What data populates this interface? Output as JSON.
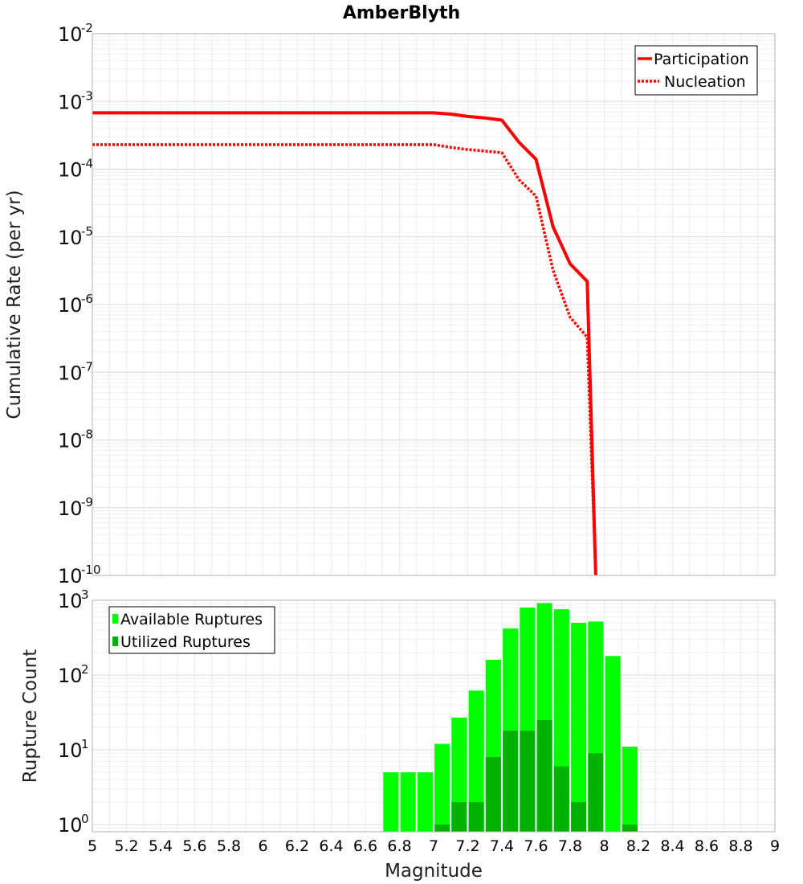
{
  "chart_data": [
    {
      "type": "line",
      "title": "AmberBlyth",
      "xlabel": "Magnitude",
      "ylabel": "Cumulative Rate (per yr)",
      "yscale": "log",
      "xlim": [
        5,
        9
      ],
      "ylim": [
        1e-10,
        0.01
      ],
      "y_tick_exponents": [
        -2,
        -3,
        -4,
        -5,
        -6,
        -7,
        -8,
        -9,
        -10
      ],
      "legend": {
        "position": "top-right"
      },
      "series": [
        {
          "name": "Participation",
          "style": "solid",
          "color": "#ff0000",
          "x": [
            5.0,
            7.0,
            7.1,
            7.2,
            7.3,
            7.4,
            7.5,
            7.6,
            7.7,
            7.8,
            7.9,
            7.95
          ],
          "y": [
            0.00068,
            0.00068,
            0.00065,
            0.0006,
            0.00057,
            0.00053,
            0.00025,
            0.00014,
            1.4e-05,
            4e-06,
            2.2e-06,
            1e-10
          ]
        },
        {
          "name": "Nucleation",
          "style": "dotted",
          "color": "#ff0000",
          "x": [
            5.0,
            7.0,
            7.1,
            7.2,
            7.3,
            7.4,
            7.5,
            7.6,
            7.7,
            7.8,
            7.9,
            7.95
          ],
          "y": [
            0.00023,
            0.00023,
            0.00021,
            0.000195,
            0.000185,
            0.000175,
            7e-05,
            4e-05,
            3.2e-06,
            6.5e-07,
            3.3e-07,
            1e-10
          ]
        }
      ]
    },
    {
      "type": "bar",
      "title": "",
      "xlabel": "Magnitude",
      "ylabel": "Rupture Count",
      "yscale": "log",
      "xlim": [
        5,
        9
      ],
      "ylim": [
        0.8,
        1000
      ],
      "y_tick_exponents": [
        3,
        2,
        1,
        0
      ],
      "x_ticks": [
        "5",
        "5.2",
        "5.4",
        "5.6",
        "5.8",
        "6",
        "6.2",
        "6.4",
        "6.6",
        "6.8",
        "7",
        "7.2",
        "7.4",
        "7.6",
        "7.8",
        "8",
        "8.2",
        "8.4",
        "8.6",
        "8.8",
        "9"
      ],
      "bar_width": 0.09,
      "legend": {
        "position": "top-left"
      },
      "x": [
        6.75,
        6.85,
        6.95,
        7.05,
        7.15,
        7.25,
        7.35,
        7.45,
        7.55,
        7.65,
        7.75,
        7.85,
        7.95,
        8.05,
        8.15
      ],
      "series": [
        {
          "name": "Available Ruptures",
          "color": "#00ff00",
          "values": [
            5,
            5,
            5,
            12,
            27,
            62,
            160,
            420,
            800,
            920,
            760,
            500,
            520,
            180,
            11
          ]
        },
        {
          "name": "Utilized Ruptures",
          "color": "#00b300",
          "values": [
            0,
            0,
            0,
            1,
            2,
            2,
            8,
            18,
            18,
            25,
            6,
            2,
            9,
            0,
            1
          ]
        }
      ]
    }
  ]
}
